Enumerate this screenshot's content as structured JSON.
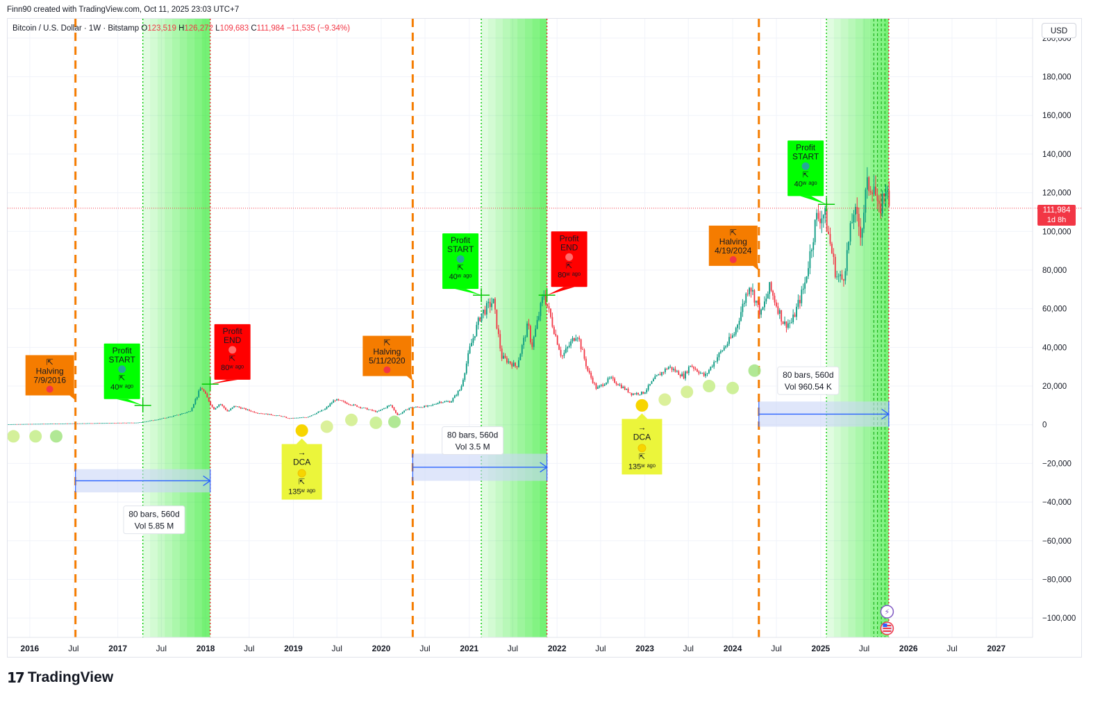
{
  "header": {
    "credit": "Finn90 created with TradingView.com, Oct 11, 2025 23:03 UTC+7"
  },
  "legend": {
    "symbol": "Bitcoin / U.S. Dollar · 1W · Bitstamp",
    "open_label": "O",
    "open": "123,519",
    "high_label": "H",
    "high": "126,272",
    "low_label": "L",
    "low": "109,683",
    "close_label": "C",
    "close": "111,984",
    "change": "−11,535 (−9.34%)"
  },
  "currency_button": "USD",
  "last_price": {
    "price": "111,984",
    "countdown": "1d 8h"
  },
  "logo": {
    "mark": "17",
    "word": "TradingView"
  },
  "colors": {
    "up": "#089981",
    "down": "#f23645",
    "halving": "#f57c00",
    "profit_start": "#00ff00",
    "profit_end": "#ff0000",
    "dca": "#ebf53b",
    "range_fill": "#c9d5f7",
    "range_line": "#2962ff",
    "green_zone": "#00e600"
  },
  "chart_data": {
    "type": "candlestick",
    "symbol": "BTCUSD",
    "interval": "1W",
    "ylim": [
      -110000,
      210000
    ],
    "xlim": [
      "2015-10-01",
      "2027-06-01"
    ],
    "y_ticks": [
      {
        "v": 200000,
        "label": "200,000"
      },
      {
        "v": 180000,
        "label": "180,000"
      },
      {
        "v": 160000,
        "label": "160,000"
      },
      {
        "v": 140000,
        "label": "140,000"
      },
      {
        "v": 120000,
        "label": "120,000"
      },
      {
        "v": 100000,
        "label": "100,000"
      },
      {
        "v": 80000,
        "label": "80,000"
      },
      {
        "v": 60000,
        "label": "60,000"
      },
      {
        "v": 40000,
        "label": "40,000"
      },
      {
        "v": 20000,
        "label": "20,000"
      },
      {
        "v": 0,
        "label": "0"
      },
      {
        "v": -20000,
        "label": "−20,000"
      },
      {
        "v": -40000,
        "label": "−40,000"
      },
      {
        "v": -60000,
        "label": "−60,000"
      },
      {
        "v": -80000,
        "label": "−80,000"
      },
      {
        "v": -100000,
        "label": "−100,000"
      }
    ],
    "x_ticks": [
      {
        "d": "2016-01-01",
        "label": "2016",
        "bold": true
      },
      {
        "d": "2016-07-01",
        "label": "Jul"
      },
      {
        "d": "2017-01-01",
        "label": "2017",
        "bold": true
      },
      {
        "d": "2017-07-01",
        "label": "Jul"
      },
      {
        "d": "2018-01-01",
        "label": "2018",
        "bold": true
      },
      {
        "d": "2018-07-01",
        "label": "Jul"
      },
      {
        "d": "2019-01-01",
        "label": "2019",
        "bold": true
      },
      {
        "d": "2019-07-01",
        "label": "Jul"
      },
      {
        "d": "2020-01-01",
        "label": "2020",
        "bold": true
      },
      {
        "d": "2020-07-01",
        "label": "Jul"
      },
      {
        "d": "2021-01-01",
        "label": "2021",
        "bold": true
      },
      {
        "d": "2021-07-01",
        "label": "Jul"
      },
      {
        "d": "2022-01-01",
        "label": "2022",
        "bold": true
      },
      {
        "d": "2022-07-01",
        "label": "Jul"
      },
      {
        "d": "2023-01-01",
        "label": "2023",
        "bold": true
      },
      {
        "d": "2023-07-01",
        "label": "Jul"
      },
      {
        "d": "2024-01-01",
        "label": "2024",
        "bold": true
      },
      {
        "d": "2024-07-01",
        "label": "Jul"
      },
      {
        "d": "2025-01-01",
        "label": "2025",
        "bold": true
      },
      {
        "d": "2025-07-01",
        "label": "Jul"
      },
      {
        "d": "2026-01-01",
        "label": "2026",
        "bold": true
      },
      {
        "d": "2026-07-01",
        "label": "Jul"
      },
      {
        "d": "2027-01-01",
        "label": "2027",
        "bold": true
      }
    ],
    "last_price": 111984,
    "price_path": [
      [
        "2015-10-01",
        250
      ],
      [
        "2016-06-15",
        650
      ],
      [
        "2016-12-31",
        960
      ],
      [
        "2017-04-01",
        1100
      ],
      [
        "2017-06-15",
        2600
      ],
      [
        "2017-09-01",
        4700
      ],
      [
        "2017-11-01",
        7000
      ],
      [
        "2017-12-17",
        19500
      ],
      [
        "2018-02-06",
        8000
      ],
      [
        "2018-03-05",
        11000
      ],
      [
        "2018-04-06",
        6800
      ],
      [
        "2018-05-05",
        9700
      ],
      [
        "2018-08-01",
        6300
      ],
      [
        "2018-11-20",
        4300
      ],
      [
        "2018-12-15",
        3200
      ],
      [
        "2019-03-01",
        3900
      ],
      [
        "2019-05-15",
        8000
      ],
      [
        "2019-06-26",
        13000
      ],
      [
        "2019-09-20",
        9800
      ],
      [
        "2019-12-18",
        6600
      ],
      [
        "2020-02-12",
        10300
      ],
      [
        "2020-03-13",
        4900
      ],
      [
        "2020-05-01",
        8800
      ],
      [
        "2020-07-25",
        9600
      ],
      [
        "2020-09-01",
        11800
      ],
      [
        "2020-10-20",
        12000
      ],
      [
        "2020-12-01",
        19000
      ],
      [
        "2021-01-08",
        40000
      ],
      [
        "2021-02-21",
        57000
      ],
      [
        "2021-04-14",
        64000
      ],
      [
        "2021-05-19",
        35000
      ],
      [
        "2021-07-20",
        30000
      ],
      [
        "2021-09-06",
        52000
      ],
      [
        "2021-09-21",
        40000
      ],
      [
        "2021-11-10",
        68000
      ],
      [
        "2022-01-24",
        35000
      ],
      [
        "2022-03-29",
        47500
      ],
      [
        "2022-05-12",
        28000
      ],
      [
        "2022-06-18",
        18500
      ],
      [
        "2022-08-14",
        24000
      ],
      [
        "2022-11-10",
        16000
      ],
      [
        "2022-12-31",
        16500
      ],
      [
        "2023-02-15",
        24000
      ],
      [
        "2023-04-14",
        30000
      ],
      [
        "2023-06-15",
        25000
      ],
      [
        "2023-07-13",
        31000
      ],
      [
        "2023-09-11",
        25000
      ],
      [
        "2023-11-01",
        35000
      ],
      [
        "2024-01-11",
        47000
      ],
      [
        "2024-03-14",
        73000
      ],
      [
        "2024-05-01",
        57000
      ],
      [
        "2024-06-07",
        71000
      ],
      [
        "2024-08-05",
        52000
      ],
      [
        "2024-09-07",
        53000
      ],
      [
        "2024-10-29",
        72000
      ],
      [
        "2024-12-17",
        107000
      ],
      [
        "2025-01-21",
        109000
      ],
      [
        "2025-03-10",
        77000
      ],
      [
        "2025-04-07",
        75000
      ],
      [
        "2025-05-22",
        111000
      ],
      [
        "2025-06-22",
        99000
      ],
      [
        "2025-07-14",
        123000
      ],
      [
        "2025-08-14",
        124500
      ],
      [
        "2025-09-01",
        108000
      ],
      [
        "2025-10-06",
        126000
      ],
      [
        "2025-10-11",
        111984
      ]
    ],
    "halving_lines": [
      "2016-07-09",
      "2020-05-11",
      "2024-04-19"
    ],
    "profit_start_lines": [
      "2017-04-15",
      "2021-02-20",
      "2025-01-25"
    ],
    "profit_end_lines": [
      "2018-01-20",
      "2021-11-20",
      "2025-10-11"
    ],
    "green_zones": [
      {
        "from": "2017-04-15",
        "to": "2018-01-20",
        "bands": [
          "2017-04-15",
          "2017-05-15",
          "2017-06-15",
          "2017-07-15",
          "2017-08-15",
          "2017-09-15",
          "2017-10-15",
          "2017-11-15",
          "2017-12-15",
          "2018-01-20"
        ]
      },
      {
        "from": "2021-02-20",
        "to": "2021-11-20",
        "bands": [
          "2021-02-20",
          "2021-03-20",
          "2021-04-20",
          "2021-05-20",
          "2021-06-20",
          "2021-07-20",
          "2021-08-20",
          "2021-09-20",
          "2021-10-20",
          "2021-11-20"
        ]
      },
      {
        "from": "2025-01-25",
        "to": "2025-10-11",
        "bands": [
          "2025-01-25",
          "2025-02-25",
          "2025-03-25",
          "2025-04-25",
          "2025-05-25",
          "2025-06-25",
          "2025-07-25",
          "2025-08-25",
          "2025-09-25",
          "2025-10-11"
        ]
      }
    ],
    "dots": [
      {
        "d": "2015-10-25",
        "y": -6000,
        "c": "#cfee8f"
      },
      {
        "d": "2016-01-25",
        "y": -6000,
        "c": "#c8ee8f"
      },
      {
        "d": "2016-04-20",
        "y": -6000,
        "c": "#a9e58a"
      },
      {
        "d": "2019-02-05",
        "y": -3000,
        "c": "#f7d500",
        "big": true
      },
      {
        "d": "2019-05-20",
        "y": -1000,
        "c": "#d7ee8f"
      },
      {
        "d": "2019-08-30",
        "y": 2500,
        "c": "#d3ee8f"
      },
      {
        "d": "2019-12-10",
        "y": 1000,
        "c": "#c9ee8f"
      },
      {
        "d": "2020-02-25",
        "y": 1500,
        "c": "#a9e58a"
      },
      {
        "d": "2022-12-20",
        "y": 10000,
        "c": "#f7d500",
        "big": true
      },
      {
        "d": "2023-03-25",
        "y": 13000,
        "c": "#d7ee8f"
      },
      {
        "d": "2023-06-25",
        "y": 17000,
        "c": "#d3ee8f"
      },
      {
        "d": "2023-09-25",
        "y": 20000,
        "c": "#c9ee8f"
      },
      {
        "d": "2024-01-01",
        "y": 19000,
        "c": "#c9ee8f"
      },
      {
        "d": "2024-04-01",
        "y": 28000,
        "c": "#a9e58a"
      }
    ],
    "ranges": [
      {
        "from": "2016-07-09",
        "to": "2018-01-20",
        "y1": -23000,
        "y2": -35000,
        "bars": "80 bars, 560d",
        "vol": "Vol 5.85 M",
        "label_d": "2017-06-01",
        "label_y": -42000
      },
      {
        "from": "2020-05-11",
        "to": "2021-11-20",
        "y1": -15000,
        "y2": -29000,
        "bars": "80 bars, 560d",
        "vol": "Vol 3.5 M",
        "label_d": "2021-01-15",
        "label_y": -1000
      },
      {
        "from": "2024-04-19",
        "to": "2025-10-11",
        "y1": 12000,
        "y2": -1000,
        "bars": "80 bars, 560d",
        "vol": "Vol 960.54 K",
        "label_d": "2024-11-10",
        "label_y": 30000
      }
    ],
    "halving_labels": [
      {
        "d": "2016-07-09",
        "top": 36000,
        "line1": "⇱",
        "line2": "Halving",
        "line3": "7/9/2016",
        "dot": "#f23645"
      },
      {
        "d": "2020-05-11",
        "top": 46000,
        "line1": "⇱",
        "line2": "Halving",
        "line3": "5/11/2020",
        "dot": "#f23645"
      },
      {
        "d": "2024-04-19",
        "top": 103000,
        "line1": "⇱",
        "line2": "Halving",
        "line3": "4/19/2024",
        "dot": "#f23645"
      }
    ],
    "profit_start_labels": [
      {
        "d": "2017-04-15",
        "anchor": 10000,
        "top": 42000,
        "line1": "Profit",
        "line2": "START",
        "ago": "40ʷ ᵃᵍᵒ",
        "dot": "#26a69a"
      },
      {
        "d": "2021-02-20",
        "anchor": 67000,
        "top": 99000,
        "line1": "Profit",
        "line2": "START",
        "ago": "40ʷ ᵃᵍᵒ",
        "dot": "#26a69a"
      },
      {
        "d": "2025-01-25",
        "anchor": 114000,
        "top": 147000,
        "line1": "Profit",
        "line2": "START",
        "ago": "40ʷ ᵃᵍᵒ",
        "dot": "#26a69a"
      }
    ],
    "profit_end_labels": [
      {
        "d": "2018-01-20",
        "anchor": 21000,
        "top": 52000,
        "line1": "Profit",
        "line2": "END",
        "ago": "80ʷ ᵃᵍᵒ",
        "dot": "#ff6b6b"
      },
      {
        "d": "2021-11-20",
        "anchor": 67000,
        "top": 100000,
        "line1": "Profit",
        "line2": "END",
        "ago": "80ʷ ᵃᵍᵒ",
        "dot": "#ff6b6b"
      }
    ],
    "dca_labels": [
      {
        "d": "2019-02-05",
        "y": -10000,
        "line1": "→",
        "line2": "DCA",
        "ago": "135ʷ ᵃᵍᵒ",
        "dot": "#f7d500"
      },
      {
        "d": "2022-12-20",
        "y": 3000,
        "line1": "→",
        "line2": "DCA",
        "ago": "135ʷ ᵃᵍᵒ",
        "dot": "#f7d500"
      }
    ]
  }
}
